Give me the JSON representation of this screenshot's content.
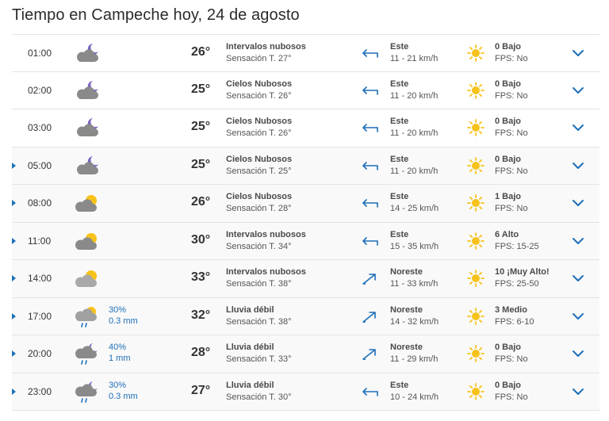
{
  "title": "Tiempo en Campeche hoy, 24 de agosto",
  "colors": {
    "accent": "#1d6fb8",
    "sun": "#f7c21a",
    "cloud": "#8a8a8a",
    "moon": "#7b64c2"
  },
  "rows": [
    {
      "time": "01:00",
      "icon": "cloud-moon-icon",
      "precip_pct": "",
      "precip_mm": "",
      "temp": "26°",
      "desc": "Intervalos nubosos",
      "feel": "Sensación T. 27°",
      "wind_dir_icon": "wind-east-icon",
      "wind_dir": "Este",
      "wind_speed": "11 - 21 km/h",
      "uv": "0 Bajo",
      "fps": "FPS: No",
      "expandable": false
    },
    {
      "time": "02:00",
      "icon": "cloud-moon-icon",
      "precip_pct": "",
      "precip_mm": "",
      "temp": "25°",
      "desc": "Cielos Nubosos",
      "feel": "Sensación T. 26°",
      "wind_dir_icon": "wind-east-icon",
      "wind_dir": "Este",
      "wind_speed": "11 - 20 km/h",
      "uv": "0 Bajo",
      "fps": "FPS: No",
      "expandable": false
    },
    {
      "time": "03:00",
      "icon": "cloud-moon-icon",
      "precip_pct": "",
      "precip_mm": "",
      "temp": "25°",
      "desc": "Cielos Nubosos",
      "feel": "Sensación T. 26°",
      "wind_dir_icon": "wind-east-icon",
      "wind_dir": "Este",
      "wind_speed": "11 - 20 km/h",
      "uv": "0 Bajo",
      "fps": "FPS: No",
      "expandable": false
    },
    {
      "time": "05:00",
      "icon": "cloud-moon-icon",
      "precip_pct": "",
      "precip_mm": "",
      "temp": "25°",
      "desc": "Cielos Nubosos",
      "feel": "Sensación T. 25°",
      "wind_dir_icon": "wind-east-icon",
      "wind_dir": "Este",
      "wind_speed": "11 - 20 km/h",
      "uv": "0 Bajo",
      "fps": "FPS: No",
      "expandable": true
    },
    {
      "time": "08:00",
      "icon": "cloud-sun-icon",
      "precip_pct": "",
      "precip_mm": "",
      "temp": "26°",
      "desc": "Cielos Nubosos",
      "feel": "Sensación T. 28°",
      "wind_dir_icon": "wind-east-icon",
      "wind_dir": "Este",
      "wind_speed": "14 - 25 km/h",
      "uv": "1 Bajo",
      "fps": "FPS: No",
      "expandable": true
    },
    {
      "time": "11:00",
      "icon": "cloud-sun-icon",
      "precip_pct": "",
      "precip_mm": "",
      "temp": "30°",
      "desc": "Intervalos nubosos",
      "feel": "Sensación T. 34°",
      "wind_dir_icon": "wind-east-icon",
      "wind_dir": "Este",
      "wind_speed": "15 - 35 km/h",
      "uv": "6 Alto",
      "fps": "FPS: 15-25",
      "expandable": true
    },
    {
      "time": "14:00",
      "icon": "cloud-sun-light-icon",
      "precip_pct": "",
      "precip_mm": "",
      "temp": "33°",
      "desc": "Intervalos nubosos",
      "feel": "Sensación T. 38°",
      "wind_dir_icon": "wind-northeast-icon",
      "wind_dir": "Noreste",
      "wind_speed": "11 - 33 km/h",
      "uv": "10 ¡Muy Alto!",
      "fps": "FPS: 25-50",
      "expandable": true
    },
    {
      "time": "17:00",
      "icon": "rain-sun-icon",
      "precip_pct": "30%",
      "precip_mm": "0.3 mm",
      "temp": "32°",
      "desc": "Lluvia débil",
      "feel": "Sensación T. 38°",
      "wind_dir_icon": "wind-northeast-icon",
      "wind_dir": "Noreste",
      "wind_speed": "14 - 32 km/h",
      "uv": "3 Medio",
      "fps": "FPS: 6-10",
      "expandable": true
    },
    {
      "time": "20:00",
      "icon": "rain-moon-icon",
      "precip_pct": "40%",
      "precip_mm": "1 mm",
      "temp": "28°",
      "desc": "Lluvia débil",
      "feel": "Sensación T. 33°",
      "wind_dir_icon": "wind-northeast-icon",
      "wind_dir": "Noreste",
      "wind_speed": "11 - 29 km/h",
      "uv": "0 Bajo",
      "fps": "FPS: No",
      "expandable": true
    },
    {
      "time": "23:00",
      "icon": "rain-moon-icon",
      "precip_pct": "30%",
      "precip_mm": "0.3 mm",
      "temp": "27°",
      "desc": "Lluvia débil",
      "feel": "Sensación T. 30°",
      "wind_dir_icon": "wind-east-icon",
      "wind_dir": "Este",
      "wind_speed": "10 - 24 km/h",
      "uv": "0 Bajo",
      "fps": "FPS: No",
      "expandable": true
    }
  ]
}
